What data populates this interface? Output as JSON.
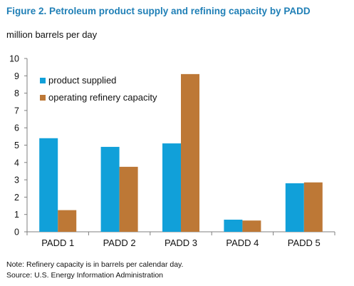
{
  "figure": {
    "title": "Figure 2. Petroleum product supply and refining capacity by PADD",
    "units": "million barrels per day",
    "note": "Note: Refinery capacity is in barrels per calendar day.",
    "source": "Source: U.S. Energy Information Administration"
  },
  "colors": {
    "title": "#1f7fb6",
    "series_product_supplied": "#11a0d9",
    "series_refinery_capacity": "#bd7836",
    "axis": "#7f7f7f"
  },
  "chart_data": {
    "type": "bar",
    "categories": [
      "PADD 1",
      "PADD 2",
      "PADD 3",
      "PADD 4",
      "PADD 5"
    ],
    "series": [
      {
        "name": "product supplied",
        "values": [
          5.4,
          4.9,
          5.1,
          0.7,
          2.8
        ],
        "color": "#11a0d9"
      },
      {
        "name": "operating refinery capacity",
        "values": [
          1.25,
          3.75,
          9.1,
          0.65,
          2.85
        ],
        "color": "#bd7836"
      }
    ],
    "y_ticks": [
      "0",
      "1",
      "2",
      "3",
      "4",
      "5",
      "6",
      "7",
      "8",
      "9",
      "10"
    ],
    "ylim": [
      0,
      10
    ],
    "grid": false,
    "legend_position": "top-left"
  }
}
